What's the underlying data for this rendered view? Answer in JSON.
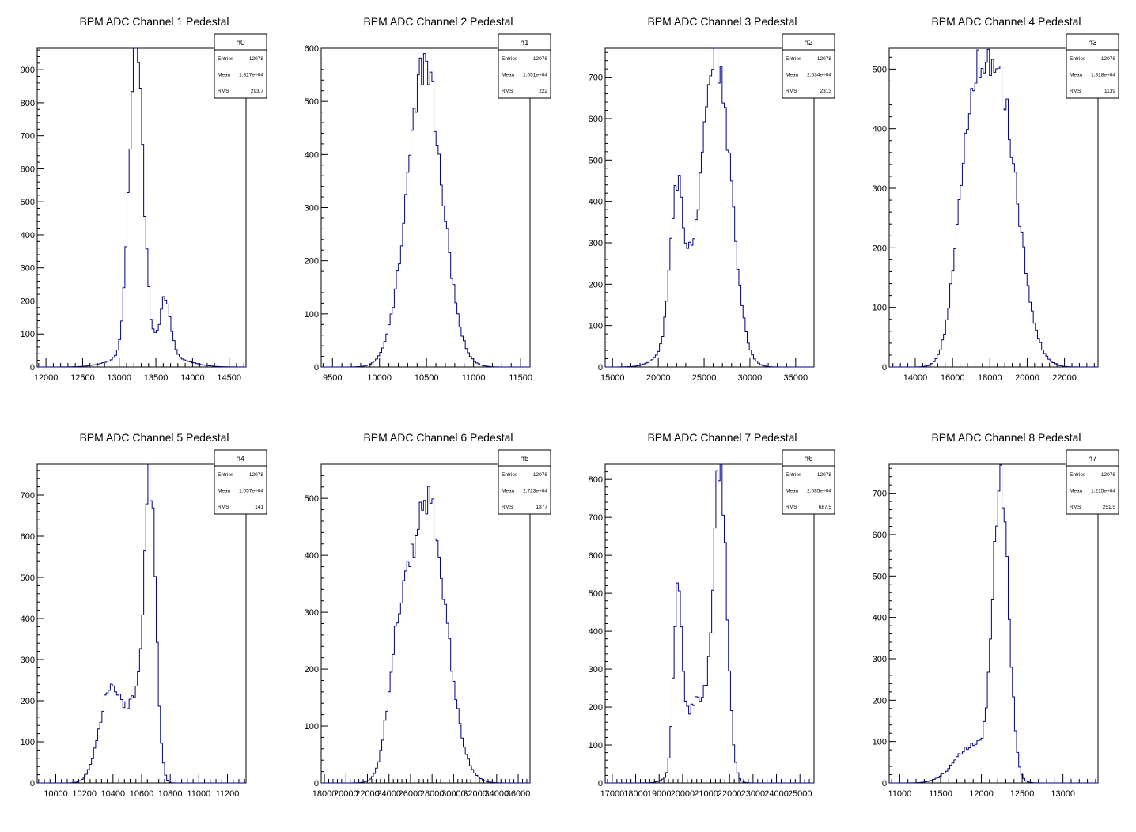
{
  "charts": [
    {
      "title": "BPM ADC Channel 1 Pedestal",
      "hist": "h0",
      "stats": [
        {
          "label": "Entries",
          "value": "12078"
        },
        {
          "label": "Mean",
          "value": "1.327e+04"
        },
        {
          "label": "RMS",
          "value": "293.7"
        }
      ],
      "xlim": [
        11880,
        14730
      ],
      "ylim": [
        0,
        965
      ],
      "xticks": [
        12000,
        12500,
        13000,
        13500,
        14000,
        14500
      ],
      "yticks": [
        0,
        100,
        200,
        300,
        400,
        500,
        600,
        700,
        800,
        900
      ],
      "peaks": [
        [
          13230,
          95,
          905
        ],
        [
          13630,
          70,
          160
        ],
        [
          13400,
          350,
          60
        ]
      ]
    },
    {
      "title": "BPM ADC Channel 2 Pedestal",
      "hist": "h1",
      "stats": [
        {
          "label": "Entries",
          "value": "12078"
        },
        {
          "label": "Mean",
          "value": "1.051e+04"
        },
        {
          "label": "RMS",
          "value": "222"
        }
      ],
      "xlim": [
        9380,
        11600
      ],
      "ylim": [
        0,
        600
      ],
      "xticks": [
        9500,
        10000,
        10500,
        11000,
        11500
      ],
      "yticks": [
        0,
        100,
        200,
        300,
        400,
        500,
        600
      ],
      "peaks": [
        [
          10480,
          190,
          560
        ]
      ]
    },
    {
      "title": "BPM ADC Channel 3 Pedestal",
      "hist": "h2",
      "stats": [
        {
          "label": "Entries",
          "value": "12078"
        },
        {
          "label": "Mean",
          "value": "2.534e+04"
        },
        {
          "label": "RMS",
          "value": "2313"
        }
      ],
      "xlim": [
        14200,
        37000
      ],
      "ylim": [
        0,
        770
      ],
      "xticks": [
        15000,
        20000,
        25000,
        30000,
        35000
      ],
      "yticks": [
        0,
        100,
        200,
        300,
        400,
        500,
        600,
        700
      ],
      "peaks": [
        [
          26500,
          1500,
          650
        ],
        [
          22000,
          700,
          330
        ],
        [
          24000,
          2200,
          170
        ]
      ]
    },
    {
      "title": "BPM ADC Channel 4 Pedestal",
      "hist": "h3",
      "stats": [
        {
          "label": "Entries",
          "value": "12078"
        },
        {
          "label": "Mean",
          "value": "1.818e+04"
        },
        {
          "label": "RMS",
          "value": "1139"
        }
      ],
      "xlim": [
        12600,
        23800
      ],
      "ylim": [
        0,
        535
      ],
      "xticks": [
        14000,
        16000,
        18000,
        20000,
        22000
      ],
      "yticks": [
        0,
        100,
        200,
        300,
        400,
        500
      ],
      "peaks": [
        [
          18500,
          1000,
          460
        ],
        [
          16900,
          700,
          320
        ]
      ]
    },
    {
      "title": "BPM ADC Channel 5 Pedestal",
      "hist": "h4",
      "stats": [
        {
          "label": "Entries",
          "value": "12078"
        },
        {
          "label": "Mean",
          "value": "1.057e+04"
        },
        {
          "label": "RMS",
          "value": "141"
        }
      ],
      "xlim": [
        9870,
        11330
      ],
      "ylim": [
        0,
        775
      ],
      "xticks": [
        10000,
        10200,
        10400,
        10600,
        10800,
        11000,
        11200
      ],
      "yticks": [
        0,
        100,
        200,
        300,
        400,
        500,
        600,
        700
      ],
      "peaks": [
        [
          10660,
          40,
          700
        ],
        [
          10390,
          80,
          240
        ],
        [
          10560,
          60,
          160
        ]
      ]
    },
    {
      "title": "BPM ADC Channel 6 Pedestal",
      "hist": "h5",
      "stats": [
        {
          "label": "Entries",
          "value": "12078"
        },
        {
          "label": "Mean",
          "value": "2.723e+04"
        },
        {
          "label": "RMS",
          "value": "1877"
        }
      ],
      "xlim": [
        17700,
        37100
      ],
      "ylim": [
        0,
        560
      ],
      "xticks": [
        18000,
        20000,
        22000,
        24000,
        26000,
        28000,
        30000,
        32000,
        34000,
        36000
      ],
      "yticks": [
        0,
        100,
        200,
        300,
        400,
        500
      ],
      "peaks": [
        [
          27600,
          1700,
          490
        ],
        [
          24800,
          900,
          170
        ]
      ]
    },
    {
      "title": "BPM ADC Channel 7 Pedestal",
      "hist": "h6",
      "stats": [
        {
          "label": "Entries",
          "value": "12078"
        },
        {
          "label": "Mean",
          "value": "2.085e+04"
        },
        {
          "label": "RMS",
          "value": "687.5"
        }
      ],
      "xlim": [
        16700,
        25600
      ],
      "ylim": [
        0,
        840
      ],
      "xticks": [
        17000,
        18000,
        19000,
        20000,
        21000,
        22000,
        23000,
        24000,
        25000
      ],
      "yticks": [
        0,
        100,
        200,
        300,
        400,
        500,
        600,
        700,
        800
      ],
      "peaks": [
        [
          21600,
          280,
          780
        ],
        [
          19800,
          170,
          480
        ],
        [
          20650,
          600,
          220
        ]
      ]
    },
    {
      "title": "BPM ADC Channel 8 Pedestal",
      "hist": "h7",
      "stats": [
        {
          "label": "Entries",
          "value": "12078"
        },
        {
          "label": "Mean",
          "value": "1.215e+04"
        },
        {
          "label": "RMS",
          "value": "251.5"
        }
      ],
      "xlim": [
        10870,
        13430
      ],
      "ylim": [
        0,
        770
      ],
      "xticks": [
        11000,
        11500,
        12000,
        12500,
        13000
      ],
      "yticks": [
        0,
        100,
        200,
        300,
        400,
        500,
        600,
        700
      ],
      "peaks": [
        [
          12240,
          95,
          700
        ],
        [
          11900,
          220,
          90
        ]
      ]
    }
  ]
}
